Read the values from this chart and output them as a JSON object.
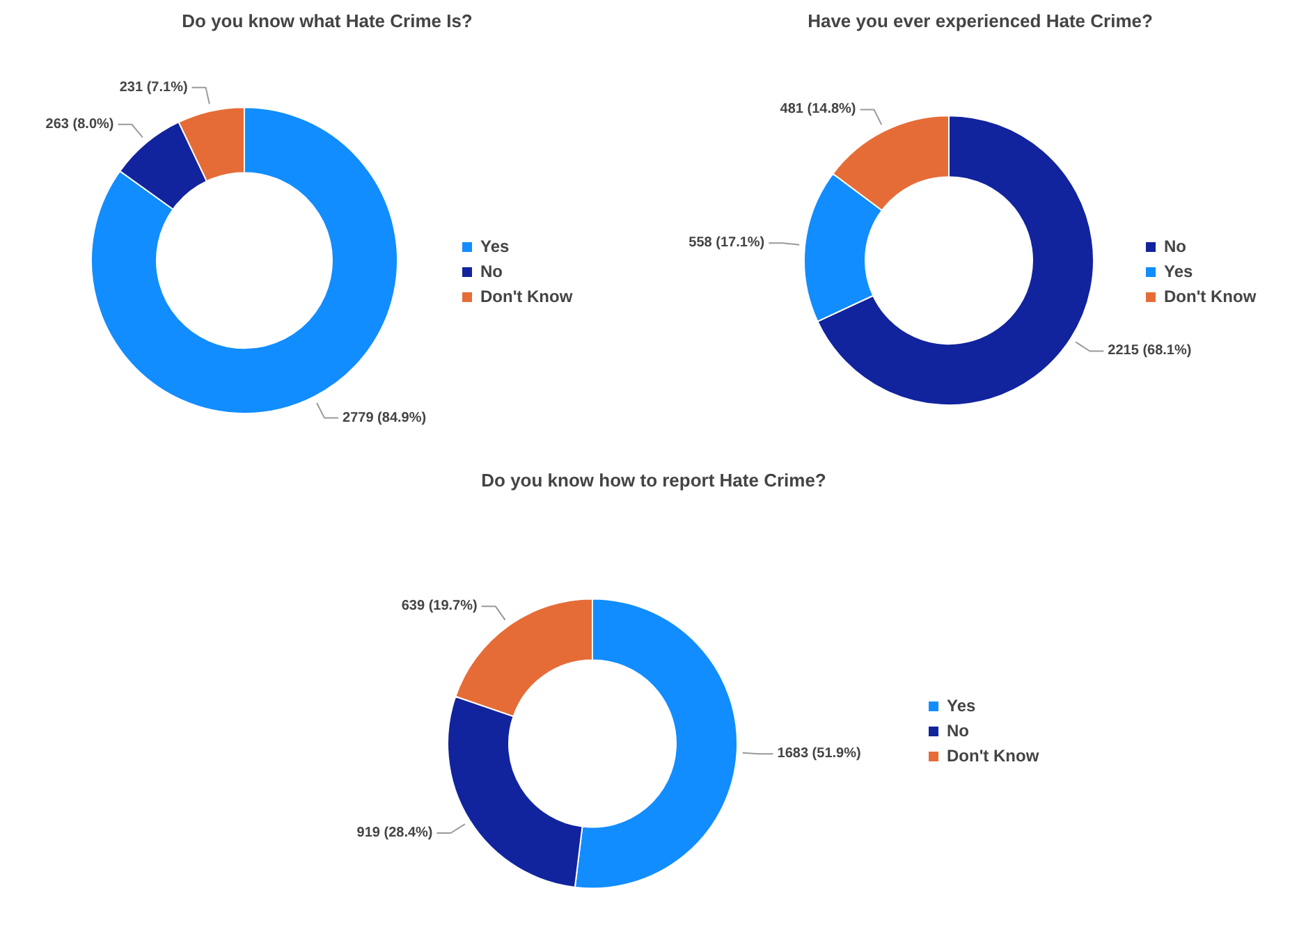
{
  "chart_data": [
    {
      "type": "donut",
      "title": "Do you know what Hate Crime Is?",
      "categories": [
        "Yes",
        "No",
        "Don't Know"
      ],
      "values": [
        2779,
        263,
        231
      ],
      "colors": [
        "#118dff",
        "#12239e",
        "#e66c37"
      ],
      "value_labels": [
        "2779 (84.9%)",
        "263 (8.0%)",
        "231 (7.1%)"
      ],
      "legend": "right"
    },
    {
      "type": "donut",
      "title": "Have you ever experienced Hate Crime?",
      "categories": [
        "No",
        "Yes",
        "Don't Know"
      ],
      "values": [
        2215,
        558,
        481
      ],
      "colors": [
        "#12239e",
        "#118dff",
        "#e66c37"
      ],
      "value_labels": [
        "2215 (68.1%)",
        "558 (17.1%)",
        "481 (14.8%)"
      ],
      "legend": "right"
    },
    {
      "type": "donut",
      "title": "Do you know how to report Hate Crime?",
      "categories": [
        "Yes",
        "No",
        "Don't Know"
      ],
      "values": [
        1683,
        919,
        639
      ],
      "colors": [
        "#118dff",
        "#12239e",
        "#e66c37"
      ],
      "value_labels": [
        "1683 (51.9%)",
        "919 (28.4%)",
        "639 (19.7%)"
      ],
      "legend": "right"
    }
  ]
}
